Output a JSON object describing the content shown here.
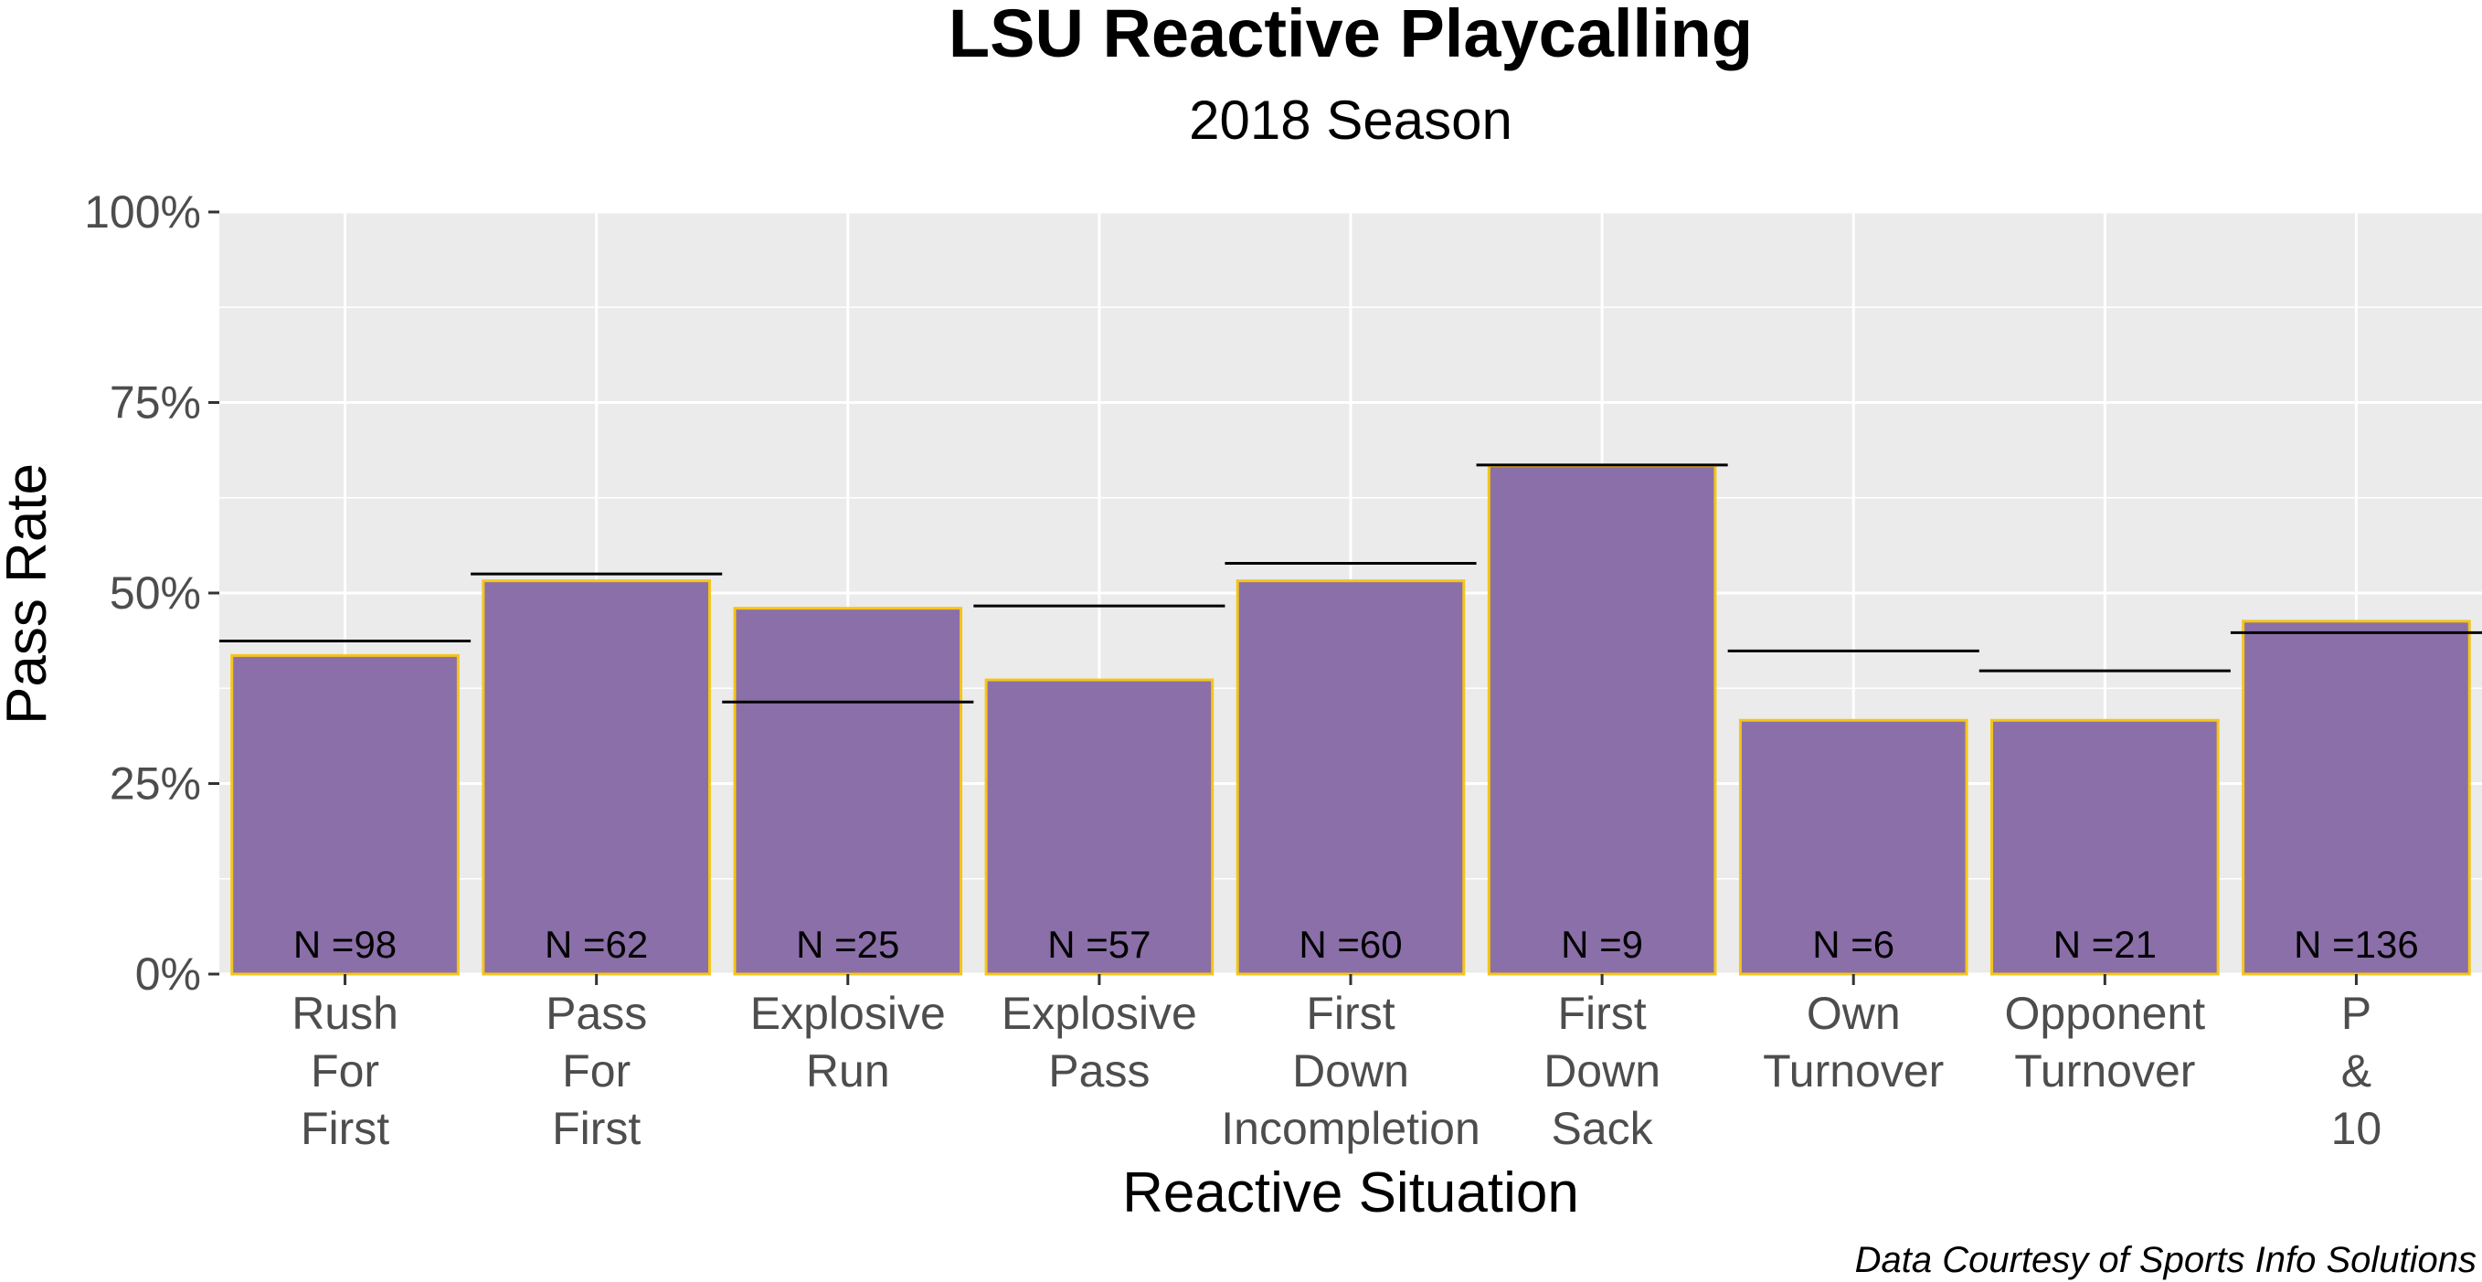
{
  "chart_data": {
    "type": "bar",
    "title": "LSU Reactive Playcalling",
    "subtitle": "2018 Season",
    "xlabel": "Reactive Situation",
    "ylabel": "Pass Rate",
    "caption": "Data Courtesy of Sports Info Solutions",
    "ylim": [
      0,
      1
    ],
    "y_ticks": [
      0,
      0.25,
      0.5,
      0.75,
      1
    ],
    "y_tick_labels": [
      "0%",
      "25%",
      "50%",
      "75%",
      "100%"
    ],
    "grid": true,
    "legend": "none",
    "categories": [
      "Rush For First",
      "Pass For First",
      "Explosive Run",
      "Explosive Pass",
      "First Down Incompletion",
      "First Down Sack",
      "Own Turnover",
      "Opponent Turnover",
      "P & 10"
    ],
    "category_label_lines": [
      [
        "Rush",
        "For",
        "First"
      ],
      [
        "Pass",
        "For",
        "First"
      ],
      [
        "Explosive",
        "Run"
      ],
      [
        "Explosive",
        "Pass"
      ],
      [
        "First",
        "Down",
        "Incompletion"
      ],
      [
        "First",
        "Down",
        "Sack"
      ],
      [
        "Own",
        "Turnover"
      ],
      [
        "Opponent",
        "Turnover"
      ],
      [
        "P",
        "&",
        "10"
      ]
    ],
    "values": [
      0.418,
      0.516,
      0.48,
      0.386,
      0.516,
      0.667,
      0.333,
      0.333,
      0.463
    ],
    "reference_values": [
      0.437,
      0.525,
      0.357,
      0.483,
      0.539,
      0.668,
      0.424,
      0.398,
      0.448
    ],
    "n_labels": [
      "N =98",
      "N =62",
      "N =25",
      "N =57",
      "N =60",
      "N =9",
      "N =6",
      "N =21",
      "N =136"
    ],
    "colors": {
      "bar_fill": "#8B6FA8",
      "bar_border": "#F5C518",
      "panel_background": "#EBEBEB",
      "grid": "#FFFFFF",
      "reference_line": "#000000"
    }
  }
}
